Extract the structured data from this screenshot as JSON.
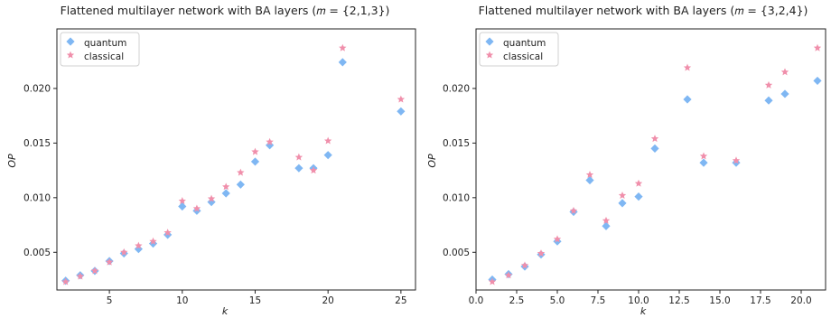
{
  "colors": {
    "quantum": "#7fb7f3",
    "classical": "#f08fab",
    "axis": "#222222"
  },
  "chart_data": [
    {
      "type": "scatter",
      "title": "Flattened multilayer network with BA layers (𝑚 = {2,1,3})",
      "xlabel": "k",
      "ylabel": "OP",
      "xlim": [
        1.4,
        26.0
      ],
      "ylim": [
        0.00155,
        0.02545
      ],
      "xticks": [
        {
          "v": 5,
          "label": "5"
        },
        {
          "v": 10,
          "label": "10"
        },
        {
          "v": 15,
          "label": "15"
        },
        {
          "v": 20,
          "label": "20"
        },
        {
          "v": 25,
          "label": "25"
        }
      ],
      "yticks": [
        {
          "v": 0.005,
          "label": "0.005"
        },
        {
          "v": 0.01,
          "label": "0.010"
        },
        {
          "v": 0.015,
          "label": "0.015"
        },
        {
          "v": 0.02,
          "label": "0.020"
        }
      ],
      "grid": false,
      "legend_position": "top-left",
      "legend": [
        {
          "name": "quantum",
          "marker": "diamond"
        },
        {
          "name": "classical",
          "marker": "star"
        }
      ],
      "series": [
        {
          "name": "quantum",
          "marker": "diamond",
          "x": [
            2,
            3,
            4,
            5,
            6,
            7,
            8,
            9,
            10,
            11,
            12,
            13,
            14,
            15,
            16,
            18,
            19,
            20,
            21,
            25
          ],
          "y": [
            0.0024,
            0.0029,
            0.0033,
            0.0042,
            0.0049,
            0.0053,
            0.0058,
            0.0066,
            0.0092,
            0.0088,
            0.0096,
            0.0104,
            0.0112,
            0.0133,
            0.0148,
            0.0127,
            0.0127,
            0.0139,
            0.0224,
            0.0179
          ]
        },
        {
          "name": "classical",
          "marker": "star",
          "x": [
            2,
            3,
            4,
            5,
            6,
            7,
            8,
            9,
            10,
            11,
            12,
            13,
            14,
            15,
            16,
            18,
            19,
            20,
            21,
            25
          ],
          "y": [
            0.0023,
            0.0028,
            0.0033,
            0.0041,
            0.005,
            0.0056,
            0.006,
            0.0068,
            0.0097,
            0.009,
            0.0099,
            0.011,
            0.0123,
            0.0142,
            0.0151,
            0.0137,
            0.0125,
            0.0152,
            0.0237,
            0.019
          ]
        }
      ]
    },
    {
      "type": "scatter",
      "title": "Flattened multilayer network with BA layers (𝑚 = {3,2,4})",
      "xlabel": "k",
      "ylabel": "OP",
      "xlim": [
        0.0,
        21.5
      ],
      "ylim": [
        0.00155,
        0.02545
      ],
      "xticks": [
        {
          "v": 0,
          "label": "0.0"
        },
        {
          "v": 2.5,
          "label": "2.5"
        },
        {
          "v": 5,
          "label": "5.0"
        },
        {
          "v": 7.5,
          "label": "7.5"
        },
        {
          "v": 10,
          "label": "10.0"
        },
        {
          "v": 12.5,
          "label": "12.5"
        },
        {
          "v": 15,
          "label": "15.0"
        },
        {
          "v": 17.5,
          "label": "17.5"
        },
        {
          "v": 20,
          "label": "20.0"
        }
      ],
      "yticks": [
        {
          "v": 0.005,
          "label": "0.005"
        },
        {
          "v": 0.01,
          "label": "0.010"
        },
        {
          "v": 0.015,
          "label": "0.015"
        },
        {
          "v": 0.02,
          "label": "0.020"
        }
      ],
      "grid": false,
      "legend_position": "top-left",
      "legend": [
        {
          "name": "quantum",
          "marker": "diamond"
        },
        {
          "name": "classical",
          "marker": "star"
        }
      ],
      "series": [
        {
          "name": "quantum",
          "marker": "diamond",
          "x": [
            1,
            2,
            3,
            4,
            5,
            6,
            7,
            8,
            9,
            10,
            11,
            13,
            14,
            16,
            18,
            19,
            21
          ],
          "y": [
            0.0025,
            0.003,
            0.0037,
            0.0048,
            0.006,
            0.0087,
            0.0116,
            0.0074,
            0.0095,
            0.0101,
            0.0145,
            0.019,
            0.0132,
            0.0132,
            0.0189,
            0.0195,
            0.0207
          ]
        },
        {
          "name": "classical",
          "marker": "star",
          "x": [
            1,
            2,
            3,
            4,
            5,
            6,
            7,
            8,
            9,
            10,
            11,
            13,
            14,
            16,
            18,
            19,
            21
          ],
          "y": [
            0.0023,
            0.0029,
            0.0038,
            0.0049,
            0.0062,
            0.0088,
            0.0121,
            0.0079,
            0.0102,
            0.0113,
            0.0154,
            0.0219,
            0.0138,
            0.0134,
            0.0203,
            0.0215,
            0.0237
          ]
        }
      ]
    }
  ]
}
